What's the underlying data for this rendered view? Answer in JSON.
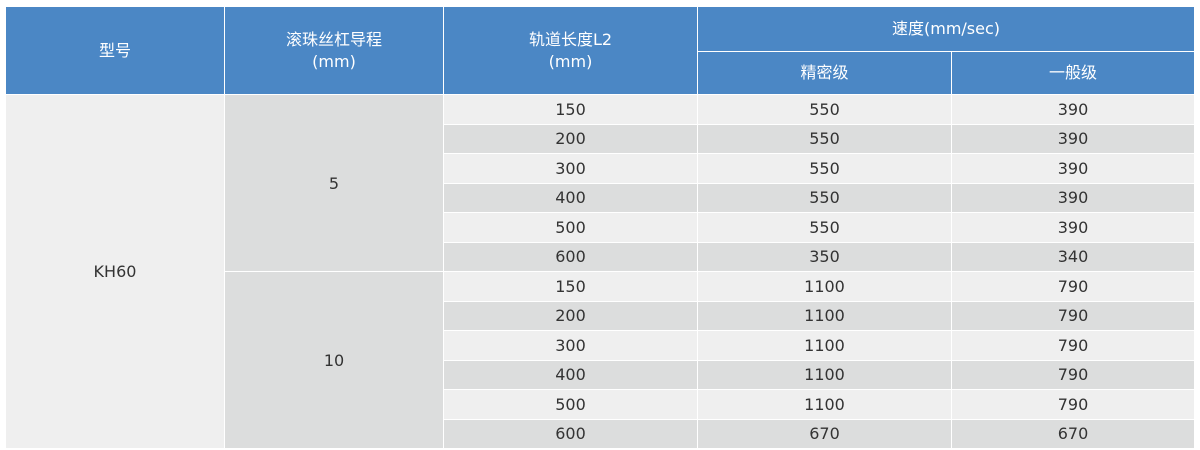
{
  "chart_data": {
    "type": "table",
    "headers": {
      "model": "型号",
      "lead": "滚珠丝杠导程",
      "lead_unit": "(mm)",
      "length": "轨道长度L2",
      "length_unit": "(mm)",
      "speed": "速度(mm/sec)",
      "precision": "精密级",
      "general": "一般级"
    },
    "model": "KH60",
    "groups": [
      {
        "lead": "5",
        "rows": [
          {
            "length": "150",
            "precision": "550",
            "general": "390"
          },
          {
            "length": "200",
            "precision": "550",
            "general": "390"
          },
          {
            "length": "300",
            "precision": "550",
            "general": "390"
          },
          {
            "length": "400",
            "precision": "550",
            "general": "390"
          },
          {
            "length": "500",
            "precision": "550",
            "general": "390"
          },
          {
            "length": "600",
            "precision": "350",
            "general": "340"
          }
        ]
      },
      {
        "lead": "10",
        "rows": [
          {
            "length": "150",
            "precision": "1100",
            "general": "790"
          },
          {
            "length": "200",
            "precision": "1100",
            "general": "790"
          },
          {
            "length": "300",
            "precision": "1100",
            "general": "790"
          },
          {
            "length": "400",
            "precision": "1100",
            "general": "790"
          },
          {
            "length": "500",
            "precision": "1100",
            "general": "790"
          },
          {
            "length": "600",
            "precision": "670",
            "general": "670"
          }
        ]
      }
    ],
    "colors": {
      "header": "#4b87c5",
      "row_light": "#efefef",
      "row_dark": "#dcdddd"
    }
  }
}
